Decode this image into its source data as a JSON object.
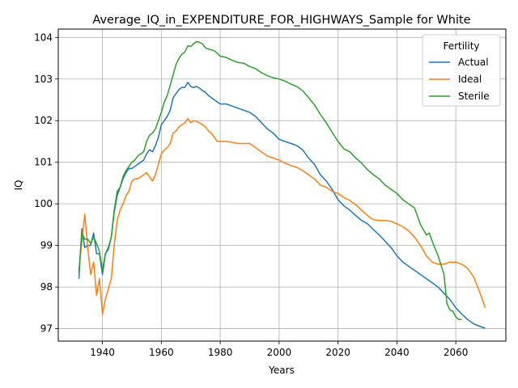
{
  "chart_data": {
    "type": "line",
    "title": "Average_IQ_in_EXPENDITURE_FOR_HIGHWAYS_Sample for White",
    "xlabel": "Years",
    "ylabel": "IQ",
    "xlim": [
      1925,
      2077
    ],
    "ylim": [
      96.7,
      104.2
    ],
    "xticks": [
      1940,
      1960,
      1980,
      2000,
      2020,
      2040,
      2060
    ],
    "yticks": [
      97,
      98,
      99,
      100,
      101,
      102,
      103,
      104
    ],
    "grid": true,
    "legend": {
      "title": "Fertility",
      "position": "top-right"
    },
    "series": [
      {
        "name": "Actual",
        "color": "#1f77b4",
        "points": [
          [
            1932,
            98.2
          ],
          [
            1933,
            99.4
          ],
          [
            1934,
            98.95
          ],
          [
            1935,
            99.0
          ],
          [
            1936,
            99.0
          ],
          [
            1937,
            99.3
          ],
          [
            1938,
            98.8
          ],
          [
            1939,
            98.8
          ],
          [
            1940,
            98.3
          ],
          [
            1941,
            98.8
          ],
          [
            1942,
            98.9
          ],
          [
            1943,
            99.2
          ],
          [
            1944,
            99.8
          ],
          [
            1945,
            100.2
          ],
          [
            1946,
            100.4
          ],
          [
            1947,
            100.6
          ],
          [
            1948,
            100.75
          ],
          [
            1949,
            100.85
          ],
          [
            1950,
            100.85
          ],
          [
            1951,
            100.9
          ],
          [
            1952,
            100.95
          ],
          [
            1953,
            101.0
          ],
          [
            1954,
            101.05
          ],
          [
            1955,
            101.2
          ],
          [
            1956,
            101.3
          ],
          [
            1957,
            101.25
          ],
          [
            1958,
            101.4
          ],
          [
            1959,
            101.6
          ],
          [
            1960,
            101.9
          ],
          [
            1961,
            102.0
          ],
          [
            1962,
            102.1
          ],
          [
            1963,
            102.25
          ],
          [
            1964,
            102.55
          ],
          [
            1965,
            102.65
          ],
          [
            1966,
            102.75
          ],
          [
            1967,
            102.8
          ],
          [
            1968,
            102.8
          ],
          [
            1969,
            102.92
          ],
          [
            1970,
            102.82
          ],
          [
            1971,
            102.8
          ],
          [
            1972,
            102.82
          ],
          [
            1973,
            102.78
          ],
          [
            1974,
            102.72
          ],
          [
            1975,
            102.68
          ],
          [
            1976,
            102.6
          ],
          [
            1977,
            102.55
          ],
          [
            1978,
            102.5
          ],
          [
            1979,
            102.45
          ],
          [
            1980,
            102.4
          ],
          [
            1982,
            102.4
          ],
          [
            1984,
            102.35
          ],
          [
            1986,
            102.3
          ],
          [
            1988,
            102.25
          ],
          [
            1990,
            102.2
          ],
          [
            1992,
            102.1
          ],
          [
            1994,
            101.95
          ],
          [
            1996,
            101.8
          ],
          [
            1998,
            101.7
          ],
          [
            2000,
            101.55
          ],
          [
            2002,
            101.5
          ],
          [
            2004,
            101.45
          ],
          [
            2006,
            101.4
          ],
          [
            2008,
            101.3
          ],
          [
            2010,
            101.1
          ],
          [
            2012,
            100.95
          ],
          [
            2014,
            100.7
          ],
          [
            2016,
            100.55
          ],
          [
            2018,
            100.35
          ],
          [
            2020,
            100.1
          ],
          [
            2022,
            99.95
          ],
          [
            2024,
            99.85
          ],
          [
            2026,
            99.72
          ],
          [
            2028,
            99.6
          ],
          [
            2030,
            99.52
          ],
          [
            2032,
            99.38
          ],
          [
            2034,
            99.25
          ],
          [
            2036,
            99.1
          ],
          [
            2038,
            98.95
          ],
          [
            2040,
            98.75
          ],
          [
            2042,
            98.6
          ],
          [
            2044,
            98.5
          ],
          [
            2046,
            98.4
          ],
          [
            2048,
            98.3
          ],
          [
            2050,
            98.2
          ],
          [
            2052,
            98.1
          ],
          [
            2054,
            98.0
          ],
          [
            2056,
            97.85
          ],
          [
            2058,
            97.7
          ],
          [
            2060,
            97.5
          ],
          [
            2062,
            97.35
          ],
          [
            2064,
            97.22
          ],
          [
            2066,
            97.12
          ],
          [
            2068,
            97.06
          ],
          [
            2070,
            97.01
          ]
        ]
      },
      {
        "name": "Ideal",
        "color": "#ff7f0e",
        "points": [
          [
            1932,
            98.4
          ],
          [
            1933,
            99.1
          ],
          [
            1934,
            99.75
          ],
          [
            1935,
            98.95
          ],
          [
            1936,
            98.3
          ],
          [
            1937,
            98.6
          ],
          [
            1938,
            97.8
          ],
          [
            1939,
            98.2
          ],
          [
            1940,
            97.35
          ],
          [
            1941,
            97.7
          ],
          [
            1942,
            97.95
          ],
          [
            1943,
            98.2
          ],
          [
            1944,
            99.0
          ],
          [
            1945,
            99.6
          ],
          [
            1946,
            99.85
          ],
          [
            1947,
            100.0
          ],
          [
            1948,
            100.2
          ],
          [
            1949,
            100.3
          ],
          [
            1950,
            100.55
          ],
          [
            1951,
            100.6
          ],
          [
            1952,
            100.6
          ],
          [
            1953,
            100.65
          ],
          [
            1954,
            100.7
          ],
          [
            1955,
            100.75
          ],
          [
            1956,
            100.65
          ],
          [
            1957,
            100.55
          ],
          [
            1958,
            100.7
          ],
          [
            1959,
            100.95
          ],
          [
            1960,
            101.2
          ],
          [
            1961,
            101.3
          ],
          [
            1962,
            101.35
          ],
          [
            1963,
            101.45
          ],
          [
            1964,
            101.7
          ],
          [
            1965,
            101.75
          ],
          [
            1966,
            101.85
          ],
          [
            1967,
            101.9
          ],
          [
            1968,
            101.95
          ],
          [
            1969,
            102.05
          ],
          [
            1970,
            101.95
          ],
          [
            1971,
            102.0
          ],
          [
            1972,
            101.98
          ],
          [
            1973,
            101.95
          ],
          [
            1974,
            101.9
          ],
          [
            1975,
            101.85
          ],
          [
            1976,
            101.75
          ],
          [
            1977,
            101.7
          ],
          [
            1978,
            101.6
          ],
          [
            1979,
            101.5
          ],
          [
            1980,
            101.5
          ],
          [
            1982,
            101.5
          ],
          [
            1984,
            101.48
          ],
          [
            1986,
            101.45
          ],
          [
            1988,
            101.45
          ],
          [
            1990,
            101.45
          ],
          [
            1992,
            101.35
          ],
          [
            1994,
            101.25
          ],
          [
            1996,
            101.15
          ],
          [
            1998,
            101.1
          ],
          [
            2000,
            101.05
          ],
          [
            2002,
            100.98
          ],
          [
            2004,
            100.92
          ],
          [
            2006,
            100.88
          ],
          [
            2008,
            100.8
          ],
          [
            2010,
            100.7
          ],
          [
            2012,
            100.6
          ],
          [
            2014,
            100.45
          ],
          [
            2016,
            100.4
          ],
          [
            2018,
            100.3
          ],
          [
            2020,
            100.25
          ],
          [
            2022,
            100.15
          ],
          [
            2024,
            100.08
          ],
          [
            2026,
            99.98
          ],
          [
            2028,
            99.85
          ],
          [
            2030,
            99.72
          ],
          [
            2032,
            99.62
          ],
          [
            2034,
            99.6
          ],
          [
            2036,
            99.6
          ],
          [
            2038,
            99.58
          ],
          [
            2040,
            99.52
          ],
          [
            2042,
            99.45
          ],
          [
            2044,
            99.35
          ],
          [
            2046,
            99.2
          ],
          [
            2048,
            99.0
          ],
          [
            2050,
            98.75
          ],
          [
            2052,
            98.6
          ],
          [
            2054,
            98.55
          ],
          [
            2056,
            98.55
          ],
          [
            2058,
            98.6
          ],
          [
            2060,
            98.6
          ],
          [
            2062,
            98.55
          ],
          [
            2064,
            98.45
          ],
          [
            2066,
            98.25
          ],
          [
            2068,
            97.9
          ],
          [
            2070,
            97.5
          ]
        ]
      },
      {
        "name": "Sterile",
        "color": "#2ca02c",
        "points": [
          [
            1932,
            98.35
          ],
          [
            1933,
            99.3
          ],
          [
            1934,
            99.15
          ],
          [
            1935,
            99.15
          ],
          [
            1936,
            99.05
          ],
          [
            1937,
            99.2
          ],
          [
            1938,
            99.05
          ],
          [
            1939,
            98.85
          ],
          [
            1940,
            98.4
          ],
          [
            1941,
            98.8
          ],
          [
            1942,
            98.95
          ],
          [
            1943,
            99.2
          ],
          [
            1944,
            99.85
          ],
          [
            1945,
            100.3
          ],
          [
            1946,
            100.4
          ],
          [
            1947,
            100.65
          ],
          [
            1948,
            100.8
          ],
          [
            1949,
            100.9
          ],
          [
            1950,
            101.0
          ],
          [
            1951,
            101.05
          ],
          [
            1952,
            101.15
          ],
          [
            1953,
            101.2
          ],
          [
            1954,
            101.25
          ],
          [
            1955,
            101.5
          ],
          [
            1956,
            101.65
          ],
          [
            1957,
            101.7
          ],
          [
            1958,
            101.8
          ],
          [
            1959,
            102.0
          ],
          [
            1960,
            102.2
          ],
          [
            1961,
            102.45
          ],
          [
            1962,
            102.6
          ],
          [
            1963,
            102.85
          ],
          [
            1964,
            103.1
          ],
          [
            1965,
            103.35
          ],
          [
            1966,
            103.5
          ],
          [
            1967,
            103.6
          ],
          [
            1968,
            103.65
          ],
          [
            1969,
            103.8
          ],
          [
            1970,
            103.78
          ],
          [
            1971,
            103.85
          ],
          [
            1972,
            103.9
          ],
          [
            1973,
            103.88
          ],
          [
            1974,
            103.84
          ],
          [
            1975,
            103.75
          ],
          [
            1976,
            103.72
          ],
          [
            1977,
            103.7
          ],
          [
            1978,
            103.68
          ],
          [
            1979,
            103.62
          ],
          [
            1980,
            103.55
          ],
          [
            1982,
            103.52
          ],
          [
            1984,
            103.45
          ],
          [
            1986,
            103.4
          ],
          [
            1988,
            103.38
          ],
          [
            1990,
            103.3
          ],
          [
            1992,
            103.25
          ],
          [
            1994,
            103.15
          ],
          [
            1996,
            103.08
          ],
          [
            1998,
            103.03
          ],
          [
            2000,
            103.0
          ],
          [
            2002,
            102.95
          ],
          [
            2004,
            102.88
          ],
          [
            2006,
            102.82
          ],
          [
            2008,
            102.72
          ],
          [
            2010,
            102.55
          ],
          [
            2012,
            102.38
          ],
          [
            2014,
            102.15
          ],
          [
            2016,
            101.95
          ],
          [
            2018,
            101.72
          ],
          [
            2020,
            101.5
          ],
          [
            2022,
            101.32
          ],
          [
            2024,
            101.25
          ],
          [
            2026,
            101.1
          ],
          [
            2028,
            100.98
          ],
          [
            2030,
            100.82
          ],
          [
            2032,
            100.7
          ],
          [
            2034,
            100.6
          ],
          [
            2036,
            100.45
          ],
          [
            2038,
            100.35
          ],
          [
            2040,
            100.25
          ],
          [
            2042,
            100.1
          ],
          [
            2044,
            100.0
          ],
          [
            2046,
            99.9
          ],
          [
            2048,
            99.5
          ],
          [
            2050,
            99.25
          ],
          [
            2051,
            99.3
          ],
          [
            2052,
            99.1
          ],
          [
            2054,
            98.75
          ],
          [
            2056,
            98.3
          ],
          [
            2057,
            97.6
          ],
          [
            2058,
            97.45
          ],
          [
            2059,
            97.42
          ],
          [
            2060,
            97.28
          ],
          [
            2061,
            97.22
          ],
          [
            2062,
            97.22
          ]
        ]
      }
    ]
  }
}
